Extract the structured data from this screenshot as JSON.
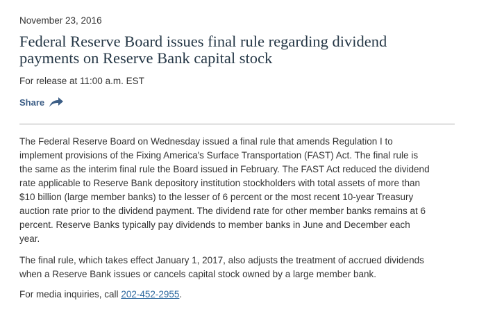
{
  "date": "November 23, 2016",
  "title_lines": [
    "Federal Reserve Board issues final rule regarding dividend",
    "payments on Reserve Bank capital stock"
  ],
  "release": "For release at 11:00 a.m. EST",
  "share": {
    "label": "Share",
    "icon": "share-arrow-icon",
    "color": "#3c5e86"
  },
  "paragraph1": [
    "The Federal Reserve Board on Wednesday issued a final rule that amends Regulation I to",
    "implement provisions of the Fixing America's Surface Transportation (FAST) Act. The final rule is",
    "the same as the interim final rule the Board issued in February. The FAST Act reduced the dividend",
    "rate applicable to Reserve Bank depository institution stockholders with total assets of more than",
    "$10 billion (large member banks) to the lesser of 6 percent or the most recent 10-year Treasury",
    "auction rate prior to the dividend payment. The dividend rate for other member banks remains at 6",
    "percent. Reserve Banks typically pay dividends to member banks in June and December each",
    "year."
  ],
  "paragraph2": [
    "The final rule, which takes effect January 1, 2017, also adjusts the treatment of accrued dividends",
    "when a Reserve Bank issues or cancels capital stock owned by a large member bank."
  ],
  "media": {
    "prefix": "For media inquiries, call ",
    "phone": "202-452-2955",
    "suffix": "."
  }
}
